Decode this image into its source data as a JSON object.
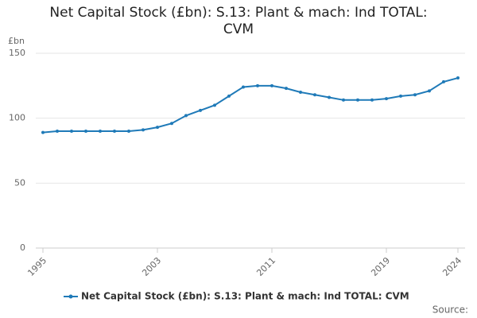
{
  "chart_data": {
    "type": "line",
    "title": "Net Capital Stock (£bn): S.13: Plant & mach: Ind TOTAL: CVM",
    "y_label": "£bn",
    "source": "Source:",
    "x": [
      1995,
      1996,
      1997,
      1998,
      1999,
      2000,
      2001,
      2002,
      2003,
      2004,
      2005,
      2006,
      2007,
      2008,
      2009,
      2010,
      2011,
      2012,
      2013,
      2014,
      2015,
      2016,
      2017,
      2018,
      2019,
      2020,
      2021,
      2022,
      2023,
      2024
    ],
    "series": [
      {
        "name": "Net Capital Stock (£bn): S.13: Plant & mach: Ind TOTAL: CVM",
        "color": "#1f7ab8",
        "values": [
          89,
          90,
          90,
          90,
          90,
          90,
          90,
          91,
          93,
          96,
          102,
          106,
          110,
          117,
          124,
          125,
          125,
          123,
          120,
          118,
          116,
          114,
          114,
          114,
          115,
          117,
          118,
          121,
          128,
          131
        ]
      }
    ],
    "xlim": [
      1994.5,
      2024.5
    ],
    "xticks": [
      1995,
      2003,
      2011,
      2019,
      2024
    ],
    "ylim": [
      0,
      150
    ],
    "yticks": [
      0,
      50,
      100,
      150
    ],
    "grid": true
  }
}
